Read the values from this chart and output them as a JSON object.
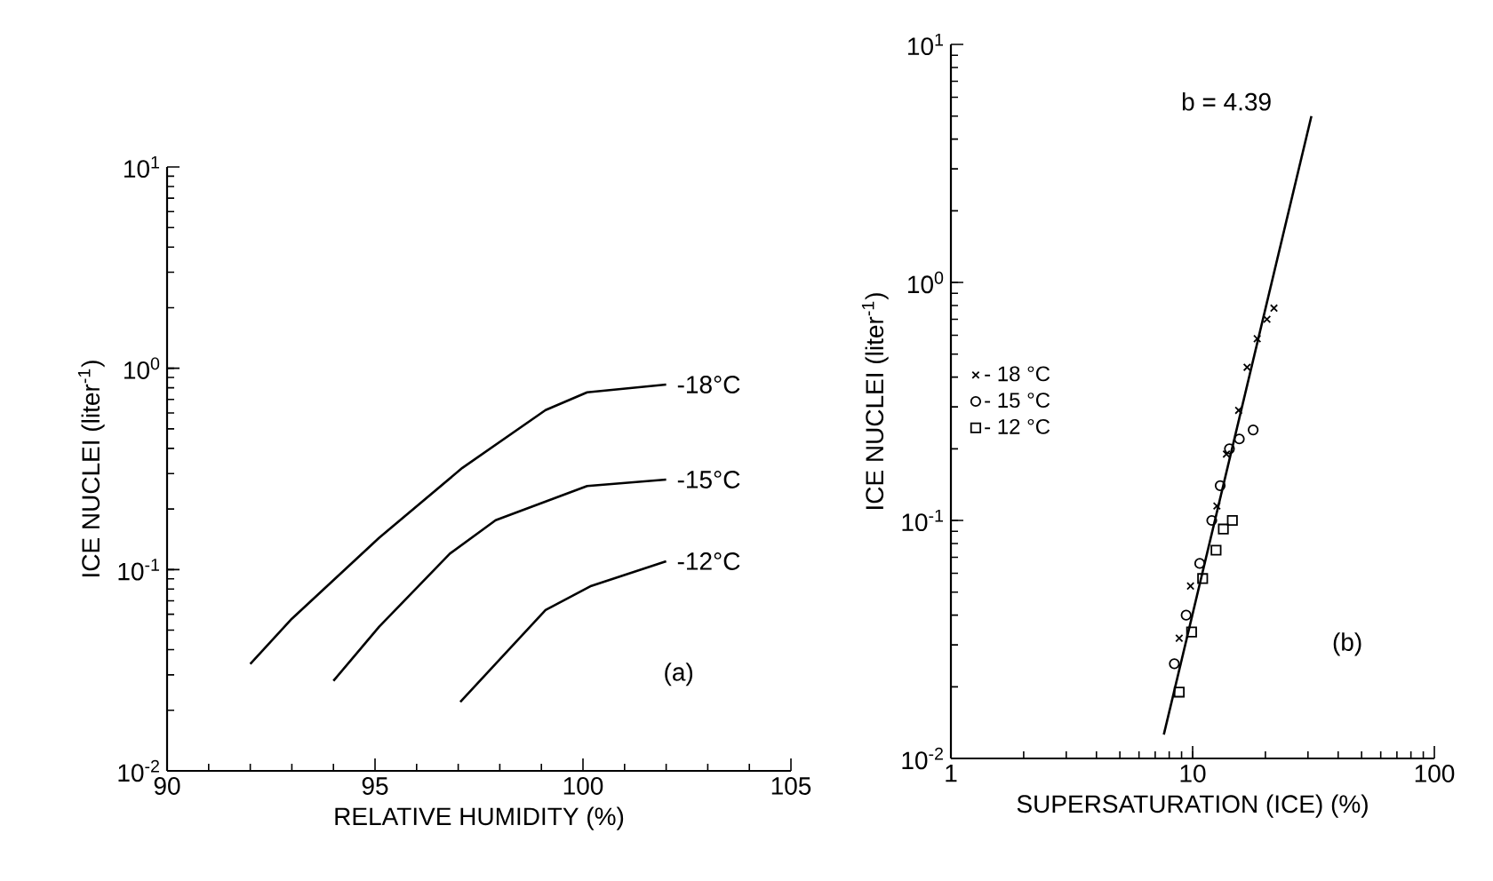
{
  "chart_data": [
    {
      "type": "line",
      "xlabel": "RELATIVE HUMIDITY (%)",
      "ylabel": "ICE NUCLEI (liter$^{-1}$)",
      "log": "y",
      "xlim": [
        90,
        105
      ],
      "ylim": [
        0.01,
        10
      ],
      "xticks": [
        90,
        95,
        100,
        105
      ],
      "yticks": [
        {
          "value": 0.01,
          "label": "10$^{-2}$"
        },
        {
          "value": 0.1,
          "label": "10$^{-1}$"
        },
        {
          "value": 1,
          "label": "10$^{0}$"
        },
        {
          "value": 10,
          "label": "10$^{1}$"
        }
      ],
      "marker": "none",
      "line_style": "solid",
      "series": [
        {
          "name": "-18°C",
          "color": "#000000",
          "x": [
            92,
            93,
            95.1,
            97.1,
            99.1,
            100.1,
            102
          ],
          "values": [
            0.034,
            0.057,
            0.144,
            0.32,
            0.62,
            0.76,
            0.83
          ]
        },
        {
          "name": "-15°C",
          "color": "#000000",
          "x": [
            94,
            95.1,
            96.8,
            97.9,
            100.1,
            102
          ],
          "values": [
            0.028,
            0.052,
            0.12,
            0.176,
            0.26,
            0.28
          ]
        },
        {
          "name": "-12°C",
          "color": "#000000",
          "x": [
            97.05,
            99.1,
            100.2,
            102
          ],
          "values": [
            0.022,
            0.063,
            0.083,
            0.11
          ]
        }
      ],
      "annotations": [
        "(a)"
      ]
    },
    {
      "type": "scatter",
      "xlabel": "SUPERSATURATION  (ICE)  (%)",
      "ylabel": "ICE NUCLEI (liter$^{-1}$)",
      "log": "xy",
      "xlim": [
        1,
        100
      ],
      "ylim": [
        0.01,
        10
      ],
      "xticks": [
        1,
        10,
        100
      ],
      "yticks": [
        {
          "value": 0.01,
          "label": "10$^{-2}$"
        },
        {
          "value": 0.1,
          "label": "10$^{-1}$"
        },
        {
          "value": 1,
          "label": "10$^{0}$"
        },
        {
          "value": 10,
          "label": "10$^{1}$"
        }
      ],
      "legend": "left",
      "series": [
        {
          "type": "line",
          "color": "#000000",
          "x": [
            7.6,
            31
          ],
          "values": [
            0.0126,
            5
          ]
        },
        {
          "name": "- 18 °C",
          "color": "#000000",
          "marker": "cross",
          "x": [
            8.8,
            9.8,
            12.6,
            13.8,
            15.5,
            16.8,
            18.5,
            20.3,
            21.7
          ],
          "values": [
            0.032,
            0.053,
            0.115,
            0.19,
            0.29,
            0.44,
            0.58,
            0.7,
            0.78
          ]
        },
        {
          "name": "- 15 °C",
          "color": "#000000",
          "marker": "circle",
          "x": [
            8.4,
            9.4,
            10.7,
            12.0,
            13.0,
            14.2,
            15.6,
            17.8
          ],
          "values": [
            0.025,
            0.04,
            0.066,
            0.1,
            0.14,
            0.2,
            0.22,
            0.24
          ]
        },
        {
          "name": "- 12 °C",
          "color": "#000000",
          "marker": "square",
          "x": [
            8.8,
            9.9,
            11.0,
            12.5,
            13.4,
            14.6
          ],
          "values": [
            0.019,
            0.034,
            0.057,
            0.075,
            0.092,
            0.1
          ]
        }
      ],
      "annotations": [
        "b = 4.39",
        "(b)"
      ]
    }
  ]
}
